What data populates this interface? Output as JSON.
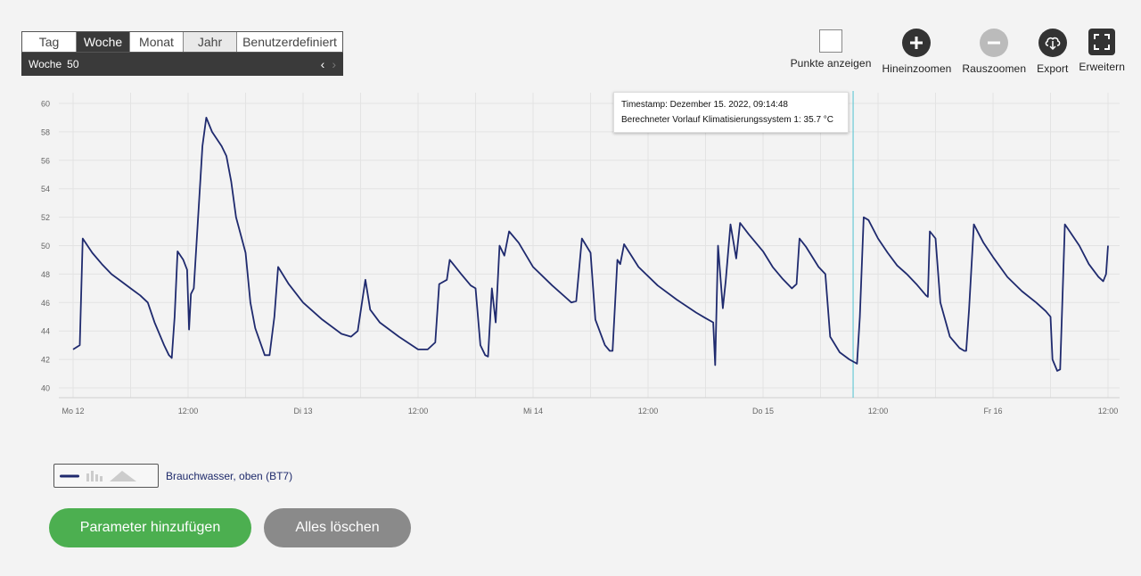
{
  "range": {
    "tabs": [
      {
        "label": "Tag"
      },
      {
        "label": "Woche"
      },
      {
        "label": "Monat"
      },
      {
        "label": "Jahr"
      },
      {
        "label": "Benutzerdefiniert"
      }
    ],
    "active": "Woche",
    "week_label": "Woche",
    "week_value": "50",
    "prev_glyph": "‹",
    "next_glyph": "›"
  },
  "toolbar": {
    "points_label": "Punkte anzeigen",
    "zoom_in_label": "Hineinzoomen",
    "zoom_out_label": "Rauszoomen",
    "export_label": "Export",
    "expand_label": "Erweitern",
    "icons": [
      "checkbox-icon",
      "plus-icon",
      "minus-icon",
      "cloud-download-icon",
      "expand-icon"
    ]
  },
  "tooltip": {
    "line1": "Timestamp: Dezember 15. 2022, 09:14:48",
    "line2": "Berechneter Vorlauf Klimatisierungssystem 1: 35.7 °C"
  },
  "chart_data": {
    "type": "line",
    "ylim": [
      40,
      60
    ],
    "yticks": [
      40,
      42,
      44,
      46,
      48,
      50,
      52,
      54,
      56,
      58,
      60
    ],
    "xlim": [
      0,
      108
    ],
    "xticks": [
      {
        "x": 0,
        "label": "Mo 12"
      },
      {
        "x": 12,
        "label": "12:00"
      },
      {
        "x": 24,
        "label": "Di 13"
      },
      {
        "x": 36,
        "label": "12:00"
      },
      {
        "x": 48,
        "label": "Mi 14"
      },
      {
        "x": 60,
        "label": "12:00"
      },
      {
        "x": 72,
        "label": "Do 15"
      },
      {
        "x": 84,
        "label": "12:00"
      },
      {
        "x": 96,
        "label": "Fr 16"
      },
      {
        "x": 108,
        "label": "12:00"
      }
    ],
    "grid": true,
    "cursor_x": 81.4,
    "color": "#1f2a6e",
    "series": [
      {
        "name": "Brauchwasser, oben (BT7)",
        "points": [
          [
            0,
            42.7
          ],
          [
            0.7,
            43
          ],
          [
            1,
            50.5
          ],
          [
            2,
            49.5
          ],
          [
            3,
            48.7
          ],
          [
            4,
            48
          ],
          [
            5,
            47.5
          ],
          [
            6,
            47
          ],
          [
            7,
            46.5
          ],
          [
            7.8,
            46
          ],
          [
            8.5,
            44.6
          ],
          [
            9.5,
            43
          ],
          [
            10,
            42.3
          ],
          [
            10.3,
            42.1
          ],
          [
            10.6,
            45
          ],
          [
            10.9,
            49.6
          ],
          [
            11.5,
            49
          ],
          [
            11.9,
            48.3
          ],
          [
            12.1,
            44.1
          ],
          [
            12.3,
            46.6
          ],
          [
            12.6,
            47
          ],
          [
            13.5,
            57
          ],
          [
            13.9,
            59
          ],
          [
            14.5,
            58
          ],
          [
            15.5,
            57
          ],
          [
            16,
            56.3
          ],
          [
            16.5,
            54.5
          ],
          [
            17,
            52
          ],
          [
            18,
            49.5
          ],
          [
            18.5,
            46
          ],
          [
            19,
            44.2
          ],
          [
            20,
            42.3
          ],
          [
            20.5,
            42.3
          ],
          [
            21,
            45
          ],
          [
            21.4,
            48.5
          ],
          [
            22.5,
            47.3
          ],
          [
            24,
            46
          ],
          [
            26,
            44.8
          ],
          [
            28,
            43.8
          ],
          [
            29,
            43.6
          ],
          [
            29.7,
            44
          ],
          [
            30.5,
            47.6
          ],
          [
            31,
            45.5
          ],
          [
            32,
            44.6
          ],
          [
            34,
            43.6
          ],
          [
            36,
            42.7
          ],
          [
            37,
            42.7
          ],
          [
            37.8,
            43.2
          ],
          [
            38.2,
            47.3
          ],
          [
            39,
            47.6
          ],
          [
            39.3,
            49
          ],
          [
            40.5,
            48
          ],
          [
            41.5,
            47.2
          ],
          [
            42,
            47
          ],
          [
            42.5,
            43
          ],
          [
            43,
            42.3
          ],
          [
            43.3,
            42.2
          ],
          [
            43.7,
            47
          ],
          [
            44.1,
            44.6
          ],
          [
            44.5,
            50
          ],
          [
            45,
            49.3
          ],
          [
            45.5,
            51
          ],
          [
            46.5,
            50.2
          ],
          [
            48,
            48.5
          ],
          [
            50,
            47.2
          ],
          [
            52,
            46
          ],
          [
            52.5,
            46.1
          ],
          [
            53.1,
            50.5
          ],
          [
            54,
            49.5
          ],
          [
            54.5,
            44.8
          ],
          [
            55.5,
            43
          ],
          [
            56,
            42.6
          ],
          [
            56.3,
            42.6
          ],
          [
            56.8,
            49
          ],
          [
            57.1,
            48.7
          ],
          [
            57.5,
            50.1
          ],
          [
            59,
            48.5
          ],
          [
            61,
            47.2
          ],
          [
            63,
            46.2
          ],
          [
            65,
            45.3
          ],
          [
            66,
            44.9
          ],
          [
            66.8,
            44.6
          ],
          [
            67,
            41.6
          ],
          [
            67.3,
            50
          ],
          [
            67.8,
            45.6
          ],
          [
            68.1,
            47.5
          ],
          [
            68.6,
            51.5
          ],
          [
            69.2,
            49.1
          ],
          [
            69.6,
            51.6
          ],
          [
            70.5,
            50.8
          ],
          [
            72,
            49.6
          ],
          [
            73,
            48.5
          ],
          [
            74,
            47.7
          ],
          [
            75,
            47
          ],
          [
            75.5,
            47.3
          ],
          [
            75.8,
            50.5
          ],
          [
            76.5,
            49.9
          ],
          [
            77.8,
            48.5
          ],
          [
            78.5,
            48
          ],
          [
            79,
            43.6
          ],
          [
            80,
            42.5
          ],
          [
            81,
            42
          ],
          [
            81.8,
            41.7
          ],
          [
            82.1,
            45
          ],
          [
            82.5,
            52
          ],
          [
            83,
            51.8
          ],
          [
            84,
            50.5
          ],
          [
            85,
            49.5
          ],
          [
            86,
            48.6
          ],
          [
            87,
            48
          ],
          [
            88,
            47.3
          ],
          [
            89,
            46.5
          ],
          [
            89.2,
            46.4
          ],
          [
            89.4,
            51
          ],
          [
            90,
            50.5
          ],
          [
            90.5,
            46
          ],
          [
            91.5,
            43.6
          ],
          [
            92.5,
            42.8
          ],
          [
            93,
            42.6
          ],
          [
            93.2,
            42.6
          ],
          [
            93.5,
            45.5
          ],
          [
            94,
            51.5
          ],
          [
            95,
            50.2
          ],
          [
            96,
            49.2
          ],
          [
            97.5,
            47.8
          ],
          [
            99,
            46.8
          ],
          [
            100.5,
            46
          ],
          [
            101.5,
            45.4
          ],
          [
            102,
            45
          ],
          [
            102.2,
            42
          ],
          [
            102.7,
            41.2
          ],
          [
            103,
            41.3
          ],
          [
            103.5,
            51.5
          ],
          [
            104,
            51
          ],
          [
            105,
            50
          ],
          [
            106,
            48.7
          ],
          [
            107,
            47.8
          ],
          [
            107.5,
            47.5
          ],
          [
            107.8,
            48
          ],
          [
            108,
            50
          ]
        ]
      }
    ]
  },
  "legend": {
    "label": "Brauchwasser, oben (BT7)"
  },
  "buttons": {
    "add_label": "Parameter hinzufügen",
    "clear_label": "Alles löschen"
  }
}
